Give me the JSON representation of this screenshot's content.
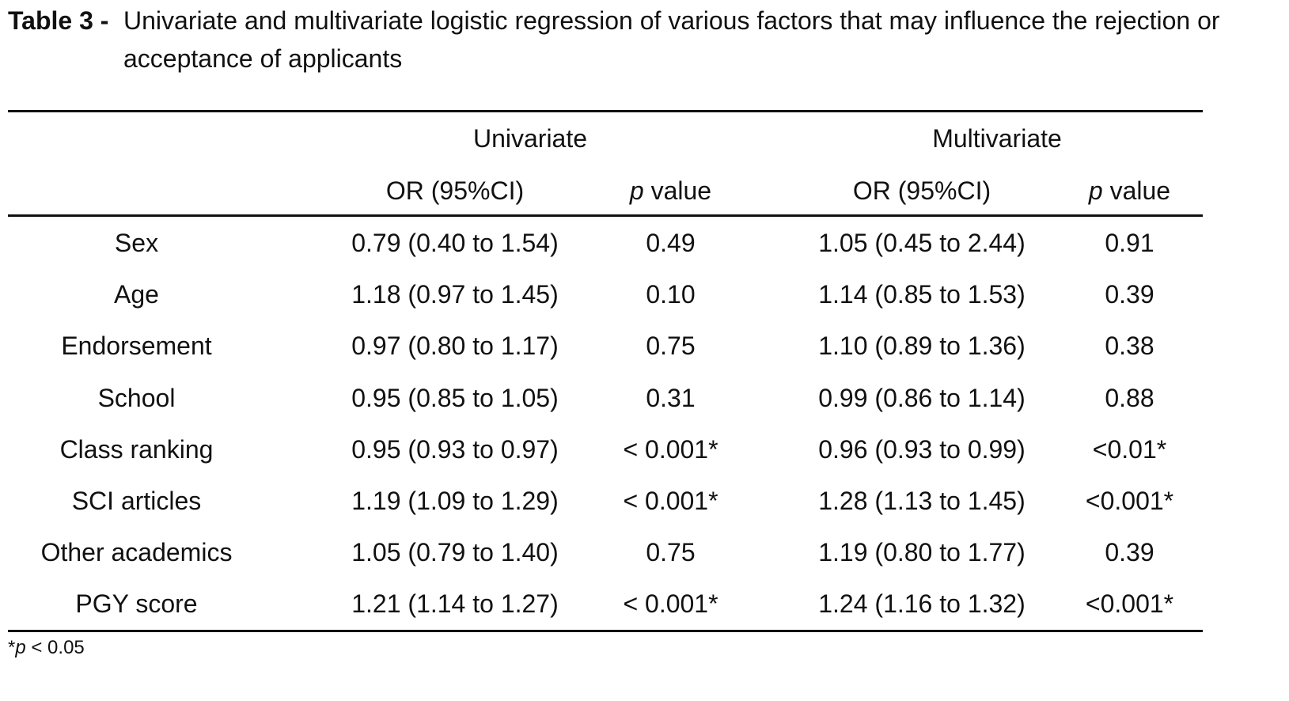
{
  "caption": {
    "label": "Table 3 - ",
    "text": "Univariate and multivariate logistic regression of various factors that may influence the rejection or acceptance of applicants"
  },
  "header": {
    "univariate": "Univariate",
    "multivariate": "Multivariate",
    "or_label": "OR (95%CI)",
    "p_italic": "p",
    "p_rest": " value"
  },
  "rows": [
    {
      "factor": "Sex",
      "uni_or": "0.79 (0.40 to 1.54)",
      "uni_p": "0.49",
      "multi_or": "1.05 (0.45 to 2.44)",
      "multi_p": "0.91"
    },
    {
      "factor": "Age",
      "uni_or": "1.18 (0.97 to 1.45)",
      "uni_p": "0.10",
      "multi_or": "1.14 (0.85 to 1.53)",
      "multi_p": "0.39"
    },
    {
      "factor": "Endorsement",
      "uni_or": "0.97 (0.80 to 1.17)",
      "uni_p": "0.75",
      "multi_or": "1.10 (0.89 to 1.36)",
      "multi_p": "0.38"
    },
    {
      "factor": "School",
      "uni_or": "0.95 (0.85 to 1.05)",
      "uni_p": "0.31",
      "multi_or": "0.99 (0.86 to 1.14)",
      "multi_p": "0.88"
    },
    {
      "factor": "Class ranking",
      "uni_or": "0.95 (0.93 to 0.97)",
      "uni_p": "< 0.001*",
      "multi_or": "0.96 (0.93 to 0.99)",
      "multi_p": "<0.01*"
    },
    {
      "factor": "SCI articles",
      "uni_or": "1.19 (1.09 to 1.29)",
      "uni_p": "< 0.001*",
      "multi_or": "1.28 (1.13 to 1.45)",
      "multi_p": "<0.001*"
    },
    {
      "factor": "Other academics",
      "uni_or": "1.05 (0.79 to 1.40)",
      "uni_p": "0.75",
      "multi_or": "1.19 (0.80 to 1.77)",
      "multi_p": "0.39"
    },
    {
      "factor": "PGY score",
      "uni_or": "1.21 (1.14 to 1.27)",
      "uni_p": "< 0.001*",
      "multi_or": "1.24 (1.16 to 1.32)",
      "multi_p": "<0.001*"
    }
  ],
  "footnote": {
    "star": "*",
    "p_italic": "p",
    "rest": " < 0.05"
  }
}
